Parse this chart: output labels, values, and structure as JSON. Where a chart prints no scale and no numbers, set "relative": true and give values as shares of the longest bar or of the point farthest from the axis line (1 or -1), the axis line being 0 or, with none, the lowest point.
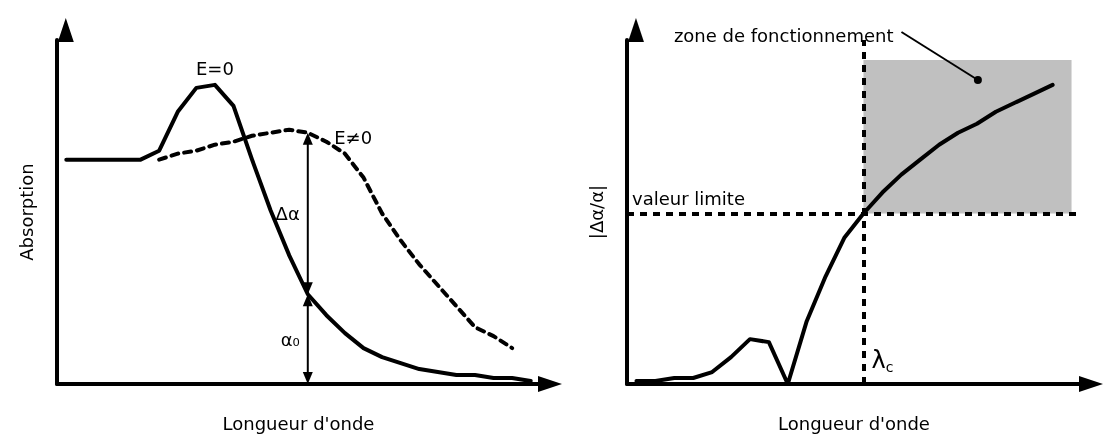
{
  "chart_data": [
    {
      "type": "line",
      "relative": true,
      "xlabel": "Longueur d'onde",
      "ylabel": "Absorption",
      "marker": "none",
      "categories": [
        null,
        null,
        null,
        null,
        null,
        null,
        null,
        null,
        null,
        null,
        null,
        null,
        null,
        null,
        null,
        null,
        null,
        null,
        null,
        null,
        null,
        null,
        null,
        null,
        null,
        null
      ],
      "series": [
        {
          "name": "E=0",
          "color": "#000000",
          "line_style": "solid",
          "values": [
            0.75,
            0.75,
            0.75,
            0.75,
            0.75,
            0.78,
            0.91,
            0.99,
            1,
            0.93,
            0.75,
            0.58,
            0.43,
            0.3,
            0.23,
            0.17,
            0.12,
            0.09,
            0.07,
            0.05,
            0.04,
            0.03,
            0.03,
            0.02,
            0.02,
            0.01
          ]
        },
        {
          "name": "E≠0",
          "color": "#000000",
          "line_style": "dashed",
          "values": [
            null,
            null,
            null,
            null,
            null,
            0.75,
            0.77,
            0.78,
            0.8,
            0.81,
            0.83,
            0.84,
            0.85,
            0.84,
            0.81,
            0.77,
            0.69,
            0.57,
            0.48,
            0.4,
            0.33,
            0.26,
            0.19,
            0.16,
            0.12,
            null
          ]
        }
      ],
      "annotations": [
        "Δα",
        "α₀"
      ]
    },
    {
      "type": "line",
      "relative": true,
      "xlabel": "Longueur d'onde",
      "ylabel": "|Δα/α|",
      "marker": "none",
      "categories": [
        null,
        null,
        null,
        null,
        null,
        null,
        null,
        null,
        null,
        null,
        null,
        null,
        null,
        null,
        null,
        null,
        null,
        null,
        null,
        null,
        null,
        null,
        null,
        null
      ],
      "series": [
        {
          "color": "#000000",
          "line_style": "solid",
          "values": [
            0.01,
            0.01,
            0.02,
            0.02,
            0.04,
            0.09,
            0.15,
            0.14,
            0,
            0.21,
            0.36,
            0.49,
            0.57,
            0.64,
            0.7,
            0.75,
            0.8,
            0.84,
            0.87,
            0.91,
            0.94,
            0.97,
            1,
            null
          ]
        }
      ],
      "ref_lines": [
        {
          "axis": "y",
          "value": 0.57,
          "label": "valeur limite",
          "line_style": "dashed"
        }
      ],
      "annotations": [
        "zone de fonctionnement",
        "λ$_{c}$"
      ]
    }
  ]
}
